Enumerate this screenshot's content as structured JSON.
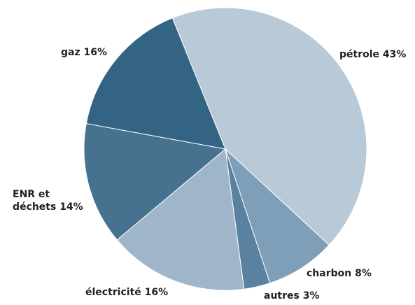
{
  "chart_data": {
    "type": "pie",
    "categories": [
      "pétrole",
      "charbon",
      "autres",
      "électricité",
      "ENR et déchets",
      "gaz"
    ],
    "values": [
      43,
      8,
      3,
      16,
      14,
      16
    ],
    "value_labels": [
      "43%",
      "8%",
      "3%",
      "16%",
      "14%",
      "16%"
    ],
    "colors": [
      "#b8c9d8",
      "#7f9fb8",
      "#5a82a0",
      "#9fb5ca",
      "#46718f",
      "#336483"
    ]
  }
}
